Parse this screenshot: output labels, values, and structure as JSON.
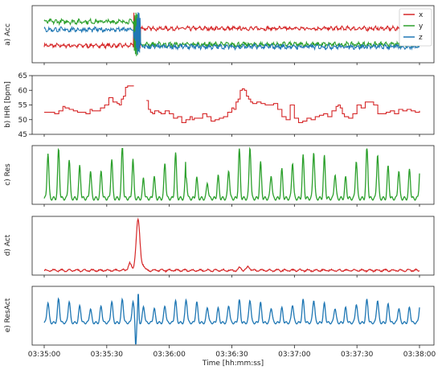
{
  "chart_data": {
    "type": "line",
    "xlabel": "Time [hh:mm:ss]",
    "x_ticks": [
      "03:35:00",
      "03:35:30",
      "03:36:00",
      "03:36:30",
      "03:37:00",
      "03:37:30",
      "03:38:00"
    ],
    "xlim_seconds_after_03_35_00": [
      0,
      180
    ],
    "panels": [
      {
        "ylabel": "a) Acc",
        "yticks": [],
        "legend": {
          "position": "top-right",
          "entries": [
            "x",
            "y",
            "z"
          ]
        },
        "series": [
          {
            "name": "x",
            "color": "#d62728",
            "level_before": 0.3,
            "level_after": 0.6,
            "noise": 0.025
          },
          {
            "name": "y",
            "color": "#2ca02c",
            "level_before": 0.72,
            "level_after": 0.32,
            "noise": 0.03
          },
          {
            "name": "z",
            "color": "#1f77b4",
            "level_before": 0.58,
            "level_after": 0.28,
            "noise": 0.03
          }
        ],
        "disturbance_seconds": [
          43,
          46
        ]
      },
      {
        "ylabel": "b) IHR [bpm]",
        "ylim": [
          45,
          65
        ],
        "yticks": [
          "45",
          "50",
          "55",
          "60",
          "65"
        ],
        "series": [
          {
            "name": "IHR",
            "color": "#d62728",
            "step": true,
            "segments": [
              {
                "x": [
                  0,
                  2,
                  4,
                  5,
                  7,
                  9,
                  10,
                  12,
                  14,
                  16,
                  18,
                  20,
                  22,
                  23,
                  25,
                  27,
                  29,
                  31,
                  33,
                  34,
                  35,
                  36,
                  37,
                  38,
                  39,
                  40,
                  42,
                  43
                ],
                "y": [
                  52.5,
                  52.5,
                  52.5,
                  52,
                  53,
                  54.5,
                  54,
                  53.5,
                  53,
                  52.5,
                  52.5,
                  52,
                  53.5,
                  53,
                  53,
                  54,
                  55,
                  57.5,
                  56,
                  56,
                  55.5,
                  55,
                  57,
                  58,
                  61,
                  61.5,
                  61.5,
                  61.5
                ]
              },
              {
                "x": [
                  49,
                  50,
                  51,
                  52,
                  53,
                  55,
                  56,
                  58,
                  60,
                  62,
                  64,
                  66,
                  68,
                  70,
                  71,
                  72,
                  74,
                  76,
                  78,
                  80,
                  82,
                  84,
                  86,
                  88,
                  90,
                  91,
                  92,
                  93,
                  94,
                  95,
                  96,
                  97,
                  98,
                  99,
                  100,
                  102,
                  104,
                  106,
                  108,
                  110,
                  112,
                  114,
                  116,
                  118,
                  120,
                  122,
                  124,
                  126,
                  128,
                  130,
                  132,
                  134,
                  136,
                  138,
                  140,
                  141,
                  142,
                  143,
                  144,
                  146,
                  148,
                  150,
                  152,
                  154,
                  156,
                  158,
                  160,
                  162,
                  164,
                  166,
                  168,
                  170,
                  172,
                  174,
                  176,
                  178,
                  180
                ],
                "y": [
                  56.5,
                  53.5,
                  52.5,
                  52,
                  53,
                  52.5,
                  52,
                  53,
                  52,
                  50.5,
                  51,
                  49,
                  50,
                  51,
                  50,
                  50.5,
                  50.5,
                  52,
                  51,
                  49.5,
                  50,
                  50.5,
                  51,
                  52.5,
                  54,
                  53.5,
                  56,
                  57,
                  60,
                  60.5,
                  60,
                  58,
                  57,
                  56,
                  55.5,
                  56,
                  55.5,
                  55,
                  55,
                  55.5,
                  53.5,
                  51,
                  50,
                  55,
                  50.5,
                  49,
                  49.5,
                  50.5,
                  50,
                  51,
                  51.5,
                  52,
                  51,
                  53,
                  54.5,
                  55,
                  54,
                  52,
                  51,
                  50.5,
                  52,
                  55,
                  54,
                  56,
                  56,
                  55,
                  52,
                  52,
                  52.5,
                  53,
                  52,
                  53.5,
                  53,
                  53.5,
                  53,
                  52.5,
                  53
                ]
              }
            ]
          }
        ]
      },
      {
        "ylabel": "c) Res",
        "yticks": [],
        "series": [
          {
            "name": "Res",
            "color": "#2ca02c",
            "period_seconds": 5.1
          }
        ]
      },
      {
        "ylabel": "d) Act",
        "yticks": [],
        "series": [
          {
            "name": "Act",
            "color": "#d62728",
            "peak_at_seconds": 45
          }
        ]
      },
      {
        "ylabel": "e) ResAct",
        "yticks": [],
        "series": [
          {
            "name": "ResAct",
            "color": "#1f77b4",
            "period_seconds": 5.1,
            "spike_at_seconds": 44.5
          }
        ]
      }
    ]
  }
}
